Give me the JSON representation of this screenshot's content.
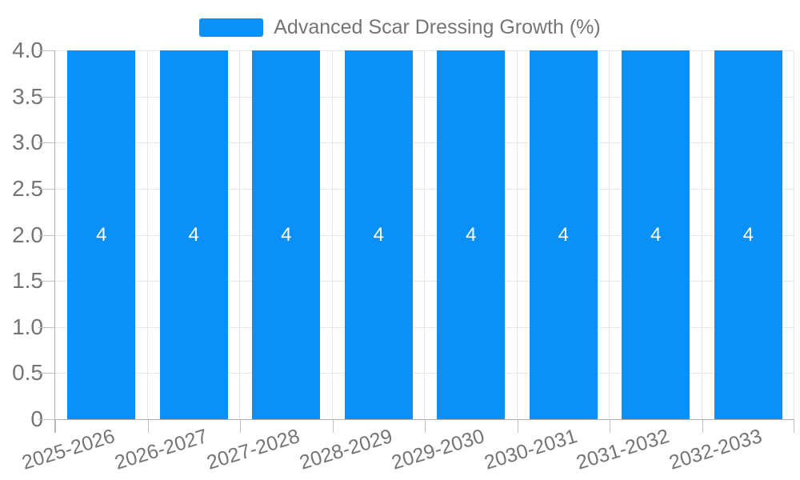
{
  "legend": {
    "label": "Advanced Scar Dressing Growth (%)"
  },
  "chart_data": {
    "type": "bar",
    "title": "",
    "categories": [
      "2025-2026",
      "2026-2027",
      "2027-2028",
      "2028-2029",
      "2029-2030",
      "2030-2031",
      "2031-2032",
      "2032-2033"
    ],
    "series": [
      {
        "name": "Advanced Scar Dressing Growth (%)",
        "values": [
          4,
          4,
          4,
          4,
          4,
          4,
          4,
          4
        ],
        "bar_labels": [
          "4",
          "4",
          "4",
          "4",
          "4",
          "4",
          "4",
          "4"
        ]
      }
    ],
    "xlabel": "",
    "ylabel": "",
    "ylim": [
      0,
      4
    ],
    "yticks": [
      0,
      0.5,
      1,
      1.5,
      2,
      2.5,
      3,
      3.5,
      4
    ],
    "ytick_labels": [
      "0",
      "0.5",
      "1.0",
      "1.5",
      "2.0",
      "2.5",
      "3.0",
      "3.5",
      "4.0"
    ],
    "grid": true,
    "legend_position": "top-center",
    "colors": {
      "bar": "#0b90f8",
      "grid": "#e6e6e6",
      "axis": "#b0b0b0",
      "tick": "#c0c0c0",
      "text": "#757575",
      "bar_label": "#ffffff",
      "background": "#ffffff"
    }
  }
}
